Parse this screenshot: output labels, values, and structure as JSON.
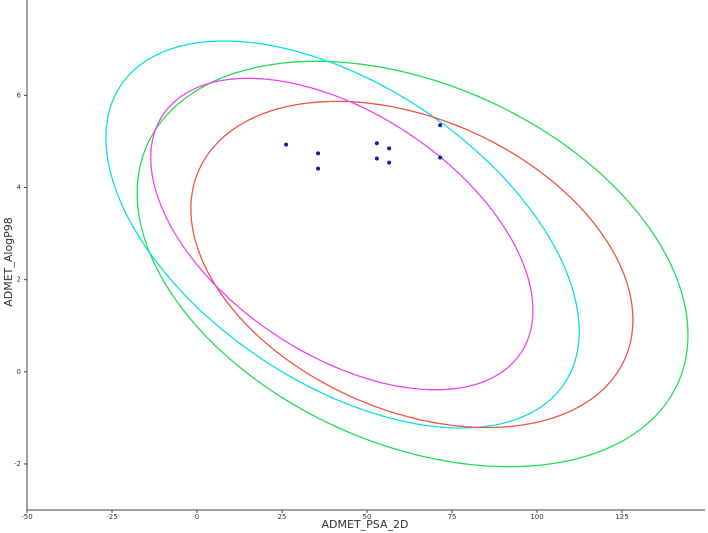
{
  "chart_data": {
    "type": "scatter",
    "x_label": "ADMET_PSA_2D",
    "y_label": "ADMET_AlogP98",
    "xlim": [
      -50,
      149.4
    ],
    "ylim": [
      -3,
      8.07
    ],
    "xticks": [
      -50,
      -25,
      0,
      25,
      50,
      75,
      100,
      125
    ],
    "yticks": [
      -2,
      0,
      2,
      4,
      6
    ],
    "series": [
      {
        "color": "#1a1aa8",
        "x": [
          26.2,
          35.6,
          35.6,
          52.9,
          52.9,
          56.5,
          56.5,
          71.5,
          71.5
        ],
        "values": [
          4.93,
          4.74,
          4.41,
          4.96,
          4.63,
          4.85,
          4.54,
          5.35,
          4.65
        ]
      }
    ],
    "ellipses": [
      {
        "color": "#22dd55",
        "cx": 63.4,
        "cy": 2.34,
        "rx": 81,
        "ry": 4.4,
        "corr": -0.35
      },
      {
        "color": "#11dddd",
        "cx": 42.8,
        "cy": 2.98,
        "rx": 69.6,
        "ry": 4.2,
        "corr": -0.5
      },
      {
        "color": "#ee5544",
        "cx": 63.2,
        "cy": 2.33,
        "rx": 65,
        "ry": 3.54,
        "corr": -0.34
      },
      {
        "color": "#ee44ee",
        "cx": 42.6,
        "cy": 2.99,
        "rx": 56.2,
        "ry": 3.38,
        "corr": -0.49
      }
    ]
  }
}
